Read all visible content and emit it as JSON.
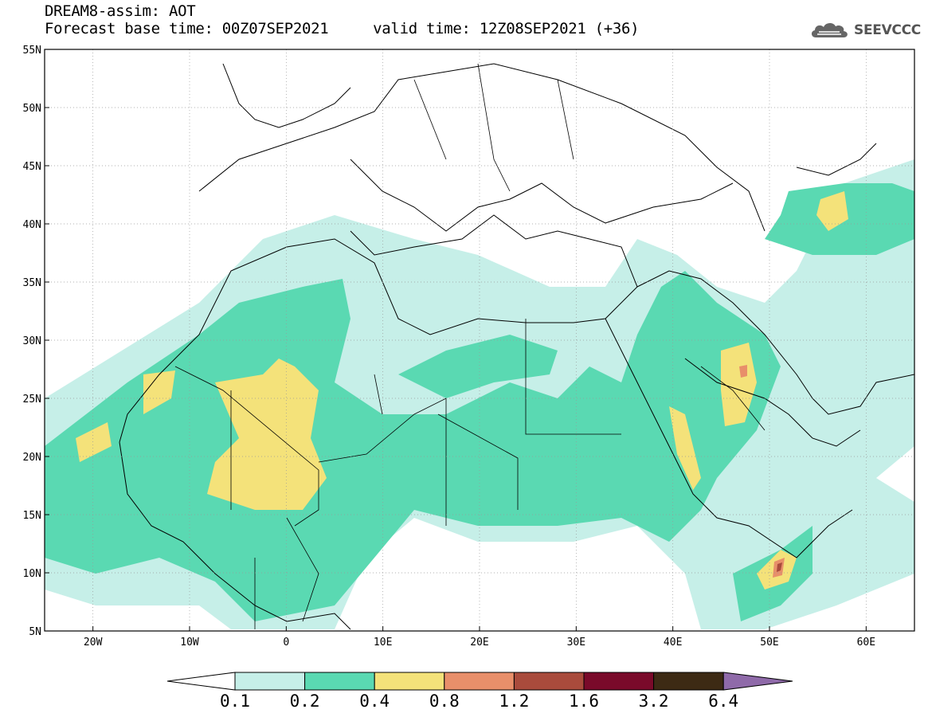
{
  "header": {
    "title": "DREAM8-assim: AOT",
    "base_time": "Forecast base time: 00Z07SEP2021",
    "valid_time": "valid time: 12Z08SEP2021 (+36)"
  },
  "logo": {
    "text": "SEEVCCC",
    "icon": "cloud-icon"
  },
  "map": {
    "lon_range": [
      -25,
      65
    ],
    "lat_range": [
      5,
      55
    ],
    "lon_ticks": [
      {
        "value": -20,
        "label": "20W"
      },
      {
        "value": -10,
        "label": "10W"
      },
      {
        "value": 0,
        "label": "0"
      },
      {
        "value": 10,
        "label": "10E"
      },
      {
        "value": 20,
        "label": "20E"
      },
      {
        "value": 30,
        "label": "30E"
      },
      {
        "value": 40,
        "label": "40E"
      },
      {
        "value": 50,
        "label": "50E"
      },
      {
        "value": 60,
        "label": "60E"
      }
    ],
    "lat_ticks": [
      {
        "value": 55,
        "label": "55N"
      },
      {
        "value": 50,
        "label": "50N"
      },
      {
        "value": 45,
        "label": "45N"
      },
      {
        "value": 40,
        "label": "40N"
      },
      {
        "value": 35,
        "label": "35N"
      },
      {
        "value": 30,
        "label": "30N"
      },
      {
        "value": 25,
        "label": "25N"
      },
      {
        "value": 20,
        "label": "20N"
      },
      {
        "value": 15,
        "label": "15N"
      },
      {
        "value": 10,
        "label": "10N"
      },
      {
        "value": 5,
        "label": "5N"
      }
    ],
    "grid": true
  },
  "colorbar": {
    "labels": [
      "0.1",
      "0.2",
      "0.4",
      "0.8",
      "1.2",
      "1.6",
      "3.2",
      "6.4"
    ],
    "colors": [
      "#ffffff",
      "#c6efe8",
      "#5ad9b2",
      "#f4e27a",
      "#e88f6a",
      "#a94b3c",
      "#7a0a2a",
      "#3d2a14",
      "#8f6aa9"
    ]
  }
}
